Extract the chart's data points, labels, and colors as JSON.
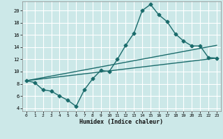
{
  "xlabel": "Humidex (Indice chaleur)",
  "bg_color": "#cce8e8",
  "line_color": "#1a6b6b",
  "grid_color": "#ffffff",
  "xlim": [
    -0.5,
    23.5
  ],
  "ylim": [
    3.5,
    21.5
  ],
  "xticks": [
    0,
    1,
    2,
    3,
    4,
    5,
    6,
    7,
    8,
    9,
    10,
    11,
    12,
    13,
    14,
    15,
    16,
    17,
    18,
    19,
    20,
    21,
    22,
    23
  ],
  "yticks": [
    4,
    6,
    8,
    10,
    12,
    14,
    16,
    18,
    20
  ],
  "main_line_x": [
    0,
    1,
    2,
    3,
    4,
    5,
    6,
    7,
    8,
    9,
    10,
    11,
    12,
    13,
    14,
    15,
    16,
    17,
    18,
    19,
    20,
    21,
    22,
    23
  ],
  "main_line_y": [
    8.5,
    8.2,
    7.0,
    6.8,
    6.0,
    5.3,
    4.3,
    7.0,
    8.8,
    10.2,
    10.0,
    12.0,
    14.3,
    16.3,
    20.0,
    21.0,
    19.3,
    18.2,
    16.2,
    15.0,
    14.2,
    14.2,
    12.3,
    12.2
  ],
  "trend_line1_x": [
    0,
    23
  ],
  "trend_line1_y": [
    8.5,
    12.2
  ],
  "trend_line2_x": [
    0,
    23
  ],
  "trend_line2_y": [
    8.5,
    14.3
  ],
  "marker": "D",
  "marker_size": 2.5,
  "line_width": 1.0
}
